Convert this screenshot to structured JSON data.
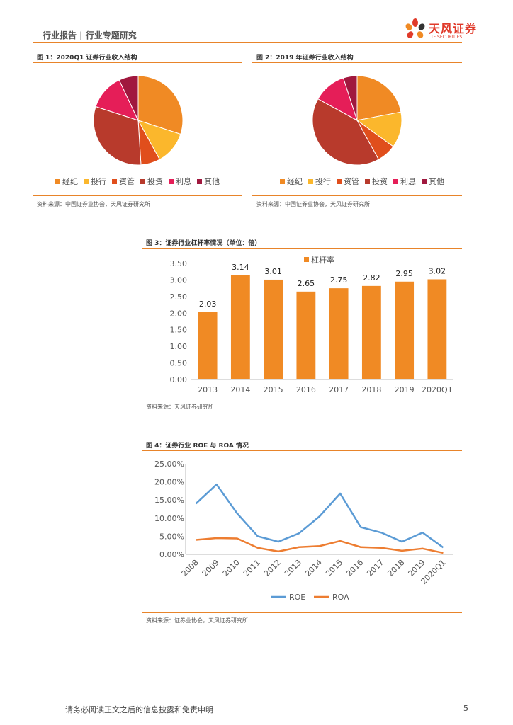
{
  "header": {
    "title": "行业报告 | 行业专题研究",
    "logo_cn": "天风证券",
    "logo_en": "TF SECURITIES"
  },
  "colors": {
    "orange": "#f08a24",
    "yellow": "#fbb72c",
    "darkorange": "#e04e1c",
    "red": "#b83a2c",
    "pink": "#e51e58",
    "maroon": "#a0183e",
    "roe": "#5b9bd5",
    "roa": "#ed7d31"
  },
  "figures": {
    "fig1": {
      "title": "图 1：2020Q1 证券行业收入结构",
      "source": "资料来源：中国证券业协会，天风证券研究所"
    },
    "fig2": {
      "title": "图 2：2019 年证券行业收入结构",
      "source": "资料来源：中国证券业协会，天风证券研究所"
    },
    "fig3": {
      "title": "图 3：证券行业杠杆率情况（单位：倍）",
      "source": "资料来源：天风证券研究所"
    },
    "fig4": {
      "title": "图 4：证券行业 ROE 与 ROA 情况",
      "source": "资料来源：证券业协会，天风证券研究所"
    }
  },
  "chart_data": [
    {
      "type": "pie",
      "labels": [
        "经纪",
        "投行",
        "资管",
        "投资",
        "利息",
        "其他"
      ],
      "values": [
        30,
        12,
        7,
        31,
        13,
        7
      ]
    },
    {
      "type": "pie",
      "labels": [
        "经纪",
        "投行",
        "资管",
        "投资",
        "利息",
        "其他"
      ],
      "values": [
        22,
        13,
        7,
        41,
        12,
        5
      ]
    },
    {
      "type": "bar",
      "categories": [
        "2013",
        "2014",
        "2015",
        "2016",
        "2017",
        "2018",
        "2019",
        "2020Q1"
      ],
      "series": [
        {
          "name": "杠杆率",
          "values": [
            2.03,
            3.14,
            3.01,
            2.65,
            2.75,
            2.82,
            2.95,
            3.02
          ]
        }
      ],
      "data_labels": [
        "2.03",
        "3.14",
        "3.01",
        "2.65",
        "2.75",
        "2.82",
        "2.95",
        "3.02"
      ],
      "ylim": [
        0,
        3.5
      ],
      "yticks": [
        "0.00",
        "0.50",
        "1.00",
        "1.50",
        "2.00",
        "2.50",
        "3.00",
        "3.50"
      ],
      "legend_position": "top"
    },
    {
      "type": "line",
      "categories": [
        "2008",
        "2009",
        "2010",
        "2011",
        "2012",
        "2013",
        "2014",
        "2015",
        "2016",
        "2017",
        "2018",
        "2019",
        "2020Q1"
      ],
      "series": [
        {
          "name": "ROE",
          "values": [
            14.0,
            19.3,
            11.3,
            5.0,
            3.5,
            5.8,
            10.5,
            16.8,
            7.5,
            6.0,
            3.5,
            6.0,
            1.9
          ]
        },
        {
          "name": "ROA",
          "values": [
            4.0,
            4.5,
            4.4,
            1.8,
            0.8,
            2.0,
            2.3,
            3.7,
            2.0,
            1.8,
            1.0,
            1.6,
            0.4
          ]
        }
      ],
      "ylim": [
        0,
        25
      ],
      "yticks": [
        "0.00%",
        "5.00%",
        "10.00%",
        "15.00%",
        "20.00%",
        "25.00%"
      ],
      "legend_position": "bottom"
    }
  ],
  "footer": {
    "disclaimer": "请务必阅读正文之后的信息披露和免责申明",
    "page": "5"
  }
}
